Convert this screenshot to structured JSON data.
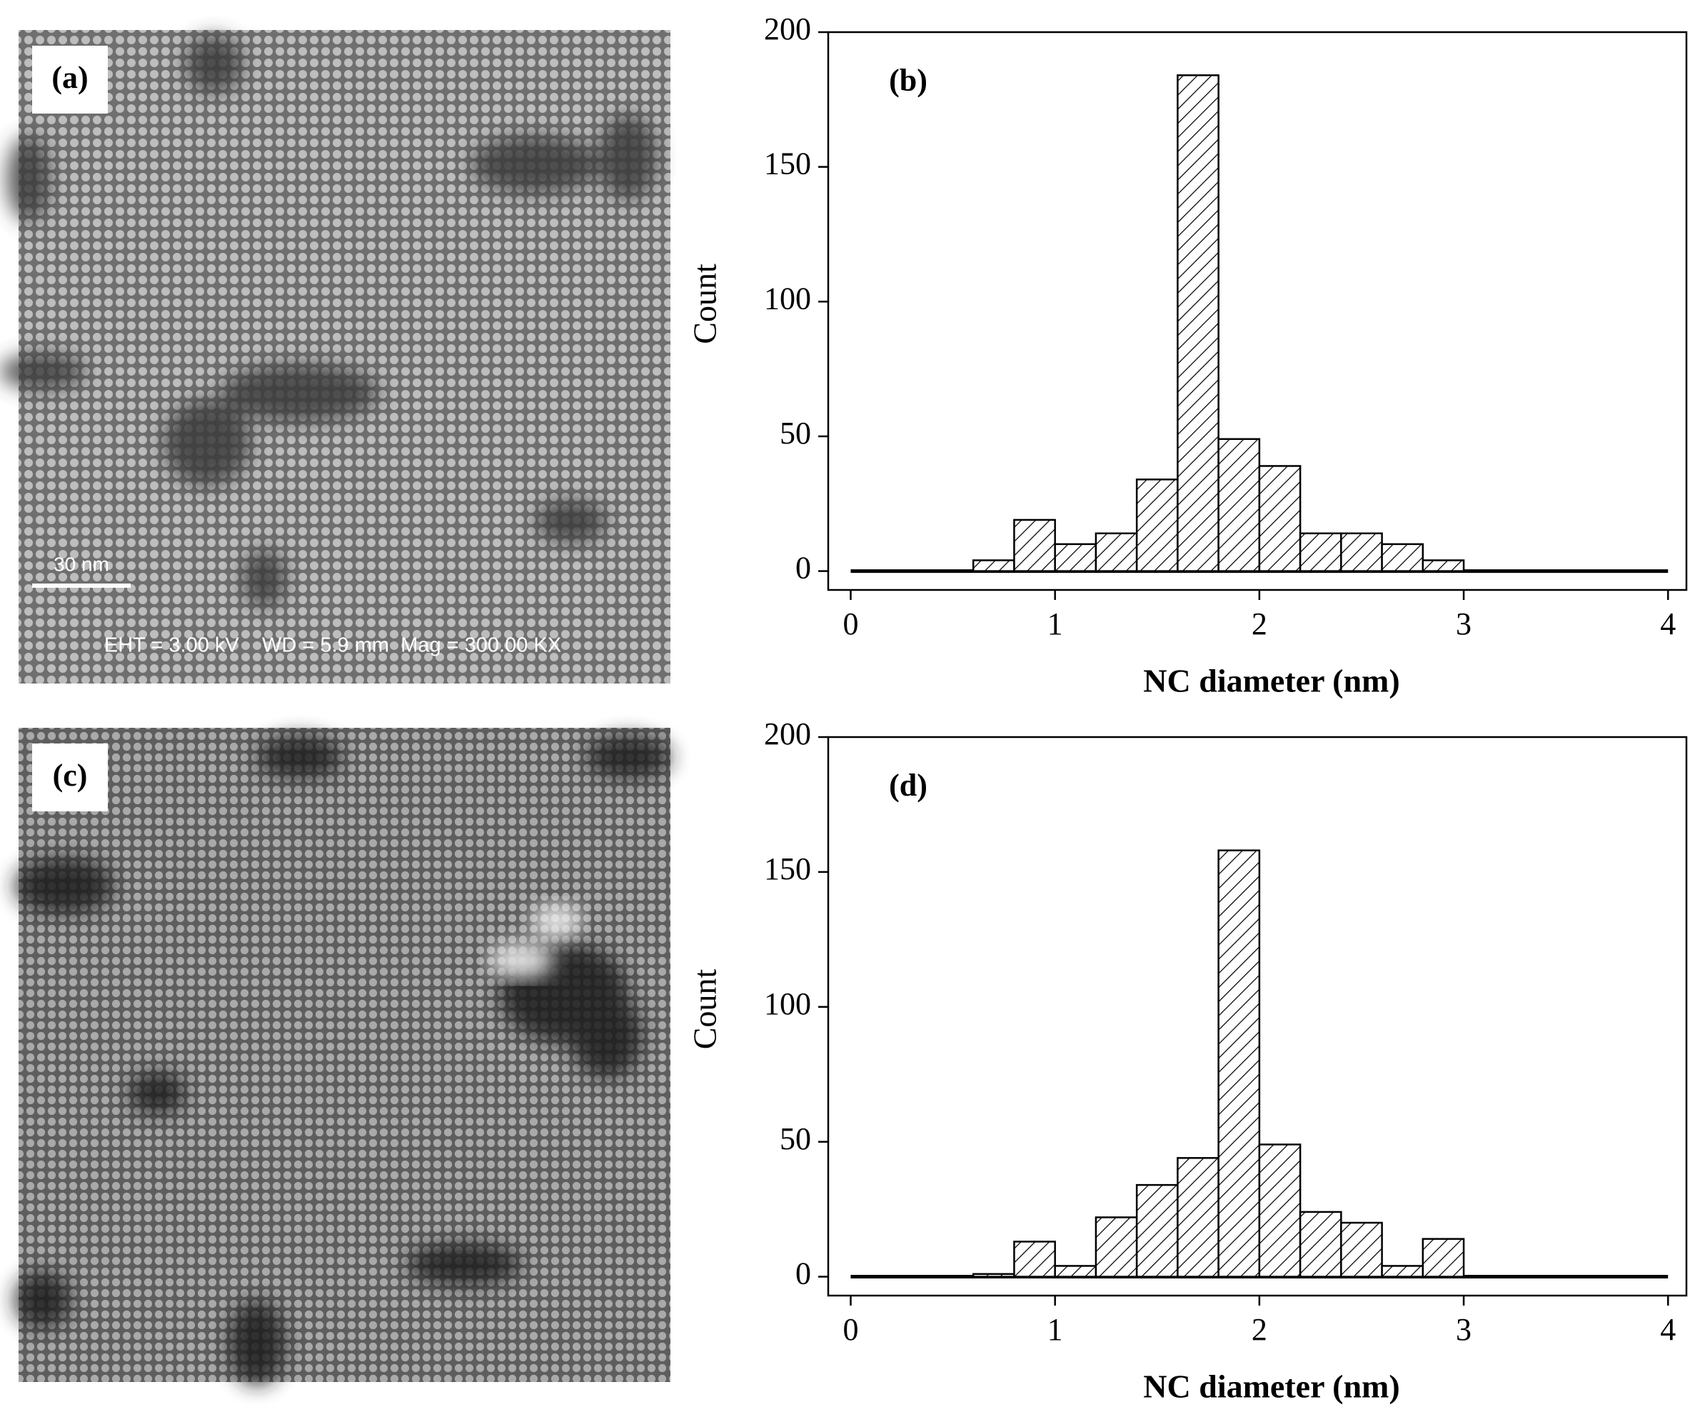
{
  "panels": [
    {
      "label": "(a)",
      "scale_bar": "30 nm",
      "info": "EHT = 3.00 kV    WD = 5.9 mm  Mag = 300.00 KX"
    },
    {
      "label": "(c)"
    }
  ],
  "chart_data": [
    {
      "type": "histogram",
      "panel_label": "(b)",
      "x_label": "NC diameter (nm)",
      "y_label": "Count",
      "bins": [
        0.6,
        0.8,
        1.0,
        1.2,
        1.4,
        1.6,
        1.8,
        2.0,
        2.2,
        2.4,
        2.6,
        2.8,
        3.0
      ],
      "values": [
        4,
        19,
        10,
        14,
        34,
        184,
        49,
        39,
        14,
        14,
        10,
        4
      ],
      "color": "#000000",
      "hatch": true,
      "xlim": [
        -0.11,
        4.09
      ],
      "ylim": [
        -7,
        200
      ],
      "xticks": [
        0,
        1,
        2,
        3,
        4
      ],
      "yticks": [
        0,
        50,
        100,
        150,
        200
      ]
    },
    {
      "type": "histogram",
      "panel_label": "(d)",
      "x_label": "NC diameter (nm)",
      "y_label": "Count",
      "bins": [
        0.6,
        0.8,
        1.0,
        1.2,
        1.4,
        1.6,
        1.8,
        2.0,
        2.2,
        2.4,
        2.6,
        2.8,
        3.0
      ],
      "values": [
        1,
        13,
        4,
        22,
        34,
        44,
        158,
        49,
        24,
        20,
        4,
        14
      ],
      "color": "#000000",
      "hatch": true,
      "xlim": [
        -0.11,
        4.09
      ],
      "ylim": [
        -7,
        200
      ],
      "xticks": [
        0,
        1,
        2,
        3,
        4
      ],
      "yticks": [
        0,
        50,
        100,
        150,
        200
      ]
    }
  ]
}
